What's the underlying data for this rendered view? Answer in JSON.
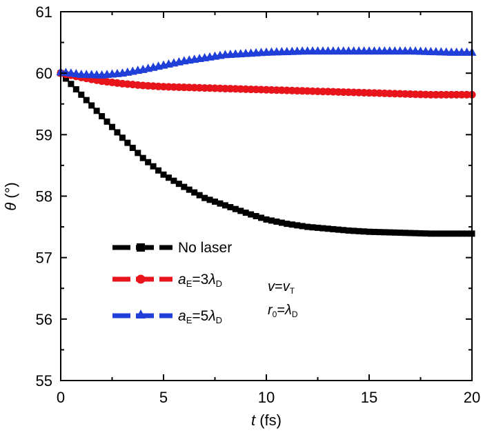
{
  "chart_data": {
    "type": "line",
    "x_ticks": [
      "0",
      "5",
      "10",
      "15",
      "20"
    ],
    "y_ticks": [
      "55",
      "56",
      "57",
      "58",
      "59",
      "60",
      "61"
    ],
    "xlim": [
      0,
      20
    ],
    "ylim": [
      55,
      61
    ],
    "xlabel": {
      "var": "t",
      "unit": " (fs)"
    },
    "ylabel": {
      "var": "θ",
      "unit": " (°)"
    },
    "legend_position": "lower-left",
    "series": [
      {
        "name": "No laser",
        "color": "#000000",
        "marker": "square",
        "x": [
          0,
          1,
          2,
          3,
          4,
          5,
          6,
          7,
          8,
          9,
          10,
          11,
          12,
          13,
          14,
          15,
          16,
          17,
          18,
          19,
          20
        ],
        "y": [
          60.0,
          59.65,
          59.3,
          58.95,
          58.62,
          58.35,
          58.15,
          57.97,
          57.85,
          57.73,
          57.62,
          57.55,
          57.5,
          57.47,
          57.44,
          57.42,
          57.41,
          57.4,
          57.39,
          57.39,
          57.39
        ]
      },
      {
        "name": "aE=3λD",
        "color": "#e8141c",
        "marker": "circle",
        "x": [
          0,
          1,
          2,
          3,
          4,
          5,
          6,
          7,
          8,
          9,
          10,
          11,
          12,
          13,
          14,
          15,
          16,
          17,
          18,
          19,
          20
        ],
        "y": [
          60.0,
          59.93,
          59.87,
          59.83,
          59.8,
          59.78,
          59.77,
          59.76,
          59.75,
          59.74,
          59.73,
          59.72,
          59.71,
          59.7,
          59.69,
          59.68,
          59.67,
          59.66,
          59.65,
          59.65,
          59.65
        ]
      },
      {
        "name": "aE=5λD",
        "color": "#1f3fd8",
        "marker": "triangle",
        "x": [
          0,
          1,
          2,
          3,
          4,
          5,
          6,
          7,
          8,
          9,
          10,
          11,
          12,
          13,
          14,
          15,
          16,
          17,
          18,
          19,
          20
        ],
        "y": [
          60.02,
          59.98,
          59.97,
          60.0,
          60.06,
          60.13,
          60.2,
          60.25,
          60.3,
          60.32,
          60.34,
          60.35,
          60.36,
          60.36,
          60.36,
          60.36,
          60.36,
          60.36,
          60.35,
          60.34,
          60.34
        ]
      }
    ],
    "legend": [
      {
        "label": "No laser",
        "marker": "square",
        "color": "#000000"
      },
      {
        "label_parts": [
          "a",
          "E",
          "=3",
          "λ",
          "D"
        ],
        "marker": "circle",
        "color": "#e8141c"
      },
      {
        "label_parts": [
          "a",
          "E",
          "=5",
          "λ",
          "D"
        ],
        "marker": "triangle",
        "color": "#1f3fd8"
      }
    ],
    "annotations": [
      {
        "parts": [
          "v",
          "=",
          "v",
          "T"
        ]
      },
      {
        "parts": [
          "r",
          "0",
          "=",
          "λ",
          "D"
        ]
      }
    ],
    "grid": false
  }
}
